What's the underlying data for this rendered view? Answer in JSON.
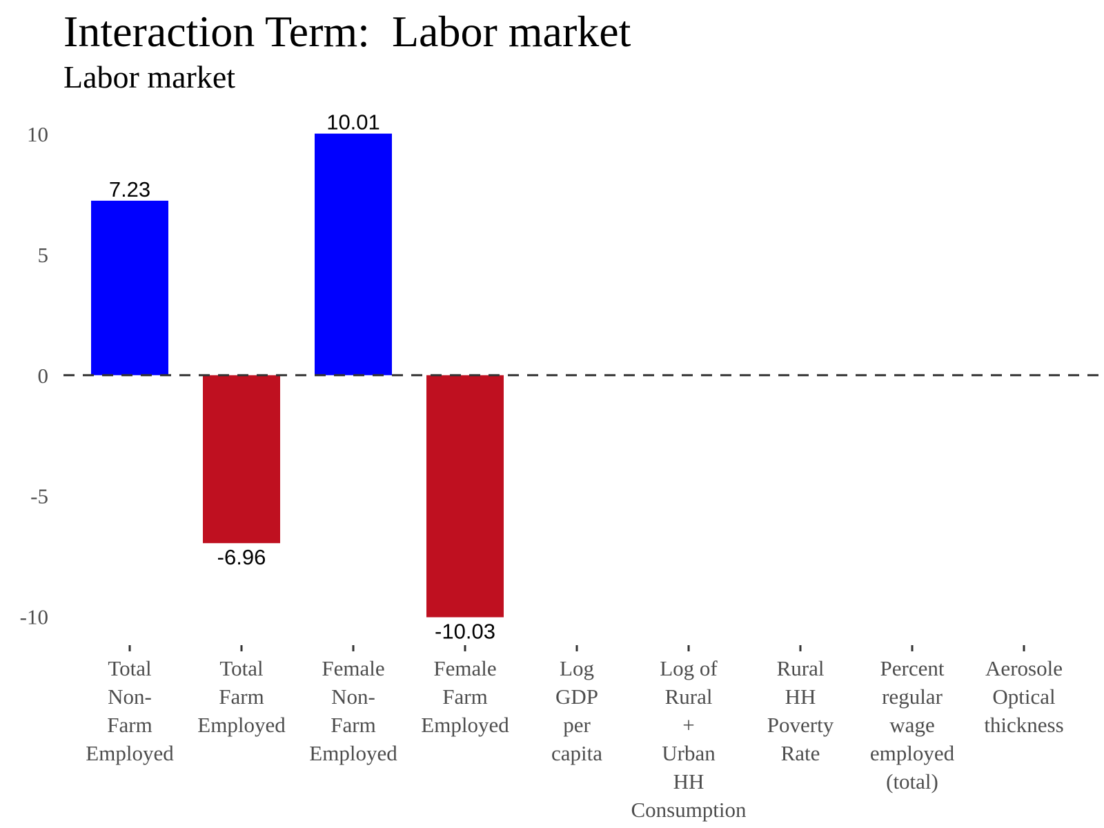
{
  "chart_data": {
    "type": "bar",
    "title": "Interaction Term:  Labor market",
    "subtitle": "Labor market",
    "categories": [
      [
        "Total",
        "Non-",
        "Farm",
        "Employed"
      ],
      [
        "Total",
        "Farm",
        "Employed"
      ],
      [
        "Female",
        "Non-",
        "Farm",
        "Employed"
      ],
      [
        "Female",
        "Farm",
        "Employed"
      ],
      [
        "Log",
        "GDP",
        "per",
        "capita"
      ],
      [
        "Log of",
        "Rural",
        "+",
        "Urban",
        "HH",
        "Consumption"
      ],
      [
        "Rural",
        "HH",
        "Poverty",
        "Rate"
      ],
      [
        "Percent",
        "regular",
        "wage",
        "employed",
        "(total)"
      ],
      [
        "Aerosole",
        "Optical",
        "thickness"
      ]
    ],
    "values": [
      7.23,
      -6.96,
      10.01,
      -10.03,
      null,
      null,
      null,
      null,
      null
    ],
    "data_labels": [
      "7.23",
      "-6.96",
      "10.01",
      "-10.03",
      "",
      "",
      "",
      "",
      ""
    ],
    "yticks": [
      -10,
      -5,
      0,
      5,
      10
    ],
    "ytick_labels": [
      "-10",
      "-5",
      "0",
      "5",
      "10"
    ],
    "ylim": [
      -10.9,
      10.6
    ],
    "reference_line": {
      "y": 0,
      "style": "dashed",
      "color": "#333333"
    },
    "colors": {
      "positive": "#0000ff",
      "negative": "#bf1020"
    },
    "xlabel": "",
    "ylabel": "",
    "grid": false,
    "legend": "none"
  }
}
